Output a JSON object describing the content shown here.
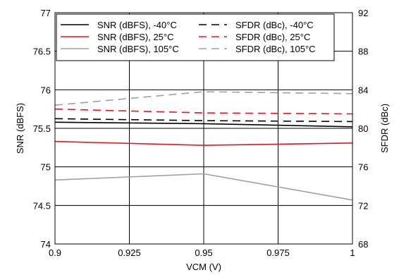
{
  "chart_data": {
    "type": "line",
    "title": "",
    "xlabel": "VCM (V)",
    "ylabel": "SNR (dBFS)",
    "y2label": "SFDR (dBc)",
    "x": [
      0.9,
      0.95,
      1.0
    ],
    "xlim": [
      0.9,
      1.0
    ],
    "ylim": [
      74,
      77
    ],
    "y2lim": [
      68,
      92
    ],
    "xticks": [
      "0.9",
      "0.925",
      "0.95",
      "0.975",
      "1"
    ],
    "yticks": [
      "74",
      "74.5",
      "75",
      "75.5",
      "76",
      "76.5",
      "77"
    ],
    "y2ticks": [
      "68",
      "72",
      "76",
      "80",
      "84",
      "88",
      "92"
    ],
    "grid": true,
    "legend_position": "top",
    "series": [
      {
        "name": "SNR (dBFS), -40°C",
        "axis": "left",
        "color": "#000000",
        "dash": "solid",
        "values": [
          75.58,
          75.56,
          75.52
        ]
      },
      {
        "name": "SFDR (dBc), -40°C",
        "axis": "right",
        "color": "#000000",
        "dash": "dashed",
        "values": [
          81.0,
          80.8,
          80.7
        ]
      },
      {
        "name": "SNR (dBFS), 25°C",
        "axis": "left",
        "color": "#e8141c",
        "dash": "solid",
        "values": [
          75.33,
          75.28,
          75.31
        ]
      },
      {
        "name": "SFDR (dBc), 25°C",
        "axis": "right",
        "color": "#e8141c",
        "dash": "dashed",
        "values": [
          82.0,
          81.6,
          81.5
        ]
      },
      {
        "name": "SNR (dBFS), 105°C",
        "axis": "left",
        "color": "#a0a0a0",
        "dash": "solid",
        "values": [
          74.83,
          74.91,
          74.57
        ]
      },
      {
        "name": "SFDR (dBc), 105°C",
        "axis": "right",
        "color": "#a0a0a0",
        "dash": "dashed",
        "values": [
          82.4,
          83.8,
          83.6
        ]
      }
    ],
    "legend_order": [
      0,
      1,
      2,
      3,
      4,
      5
    ]
  }
}
